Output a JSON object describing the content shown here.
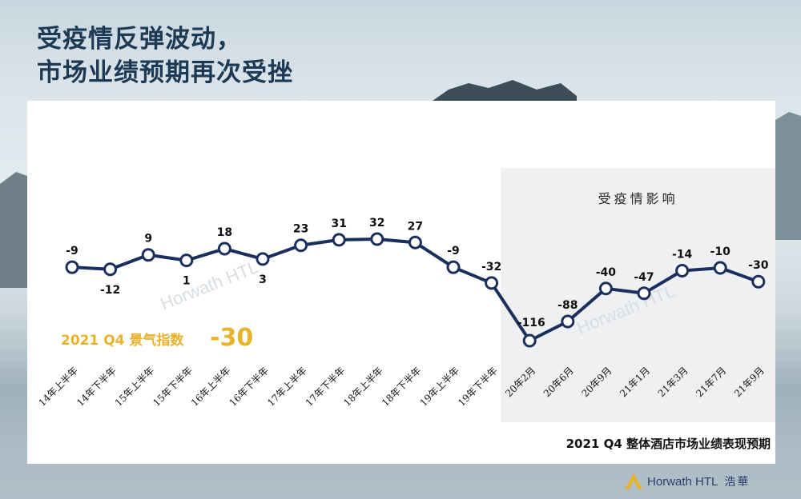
{
  "page": {
    "title_line1": "受疫情反弹波动，",
    "title_line2": "市场业绩预期再次受挫",
    "brand_en": "Horwath HTL",
    "brand_cn": "浩華",
    "watermark": "Horwath HTL"
  },
  "chart_data": {
    "type": "line",
    "title": "",
    "xlabel": "",
    "ylabel": "",
    "categories": [
      "14年上半年",
      "14年下半年",
      "15年上半年",
      "15年下半年",
      "16年上半年",
      "16年下半年",
      "17年上半年",
      "17年下半年",
      "18年上半年",
      "18年下半年",
      "19年上半年",
      "19年下半年",
      "20年2月",
      "20年6月",
      "20年9月",
      "21年1月",
      "21年3月",
      "21年7月",
      "21年9月"
    ],
    "series": [
      {
        "values": [
          -9,
          -12,
          9,
          1,
          18,
          3,
          23,
          31,
          32,
          27,
          -9,
          -32,
          -116,
          -88,
          -40,
          -47,
          -14,
          -10,
          -30
        ]
      }
    ],
    "data_labels": [
      "-9",
      "-12",
      "9",
      "1",
      "18",
      "3",
      "23",
      "31",
      "32",
      "27",
      "-9",
      "-32",
      "-116",
      "-88",
      "-40",
      "-47",
      "-14",
      "-10",
      "-30"
    ],
    "highlight_region_label": "受疫情影响",
    "highlight_region_categories": [
      "20年2月",
      "20年6月",
      "20年9月",
      "21年1月",
      "21年3月",
      "21年7月",
      "21年9月"
    ],
    "callout_label": "2021 Q4 景气指数",
    "callout_value": "-30",
    "caption": "2021 Q4 整体酒店市场业绩表现预期",
    "grid": false,
    "line_color": "#1b2f5e",
    "callout_color": "#e8b22a"
  }
}
